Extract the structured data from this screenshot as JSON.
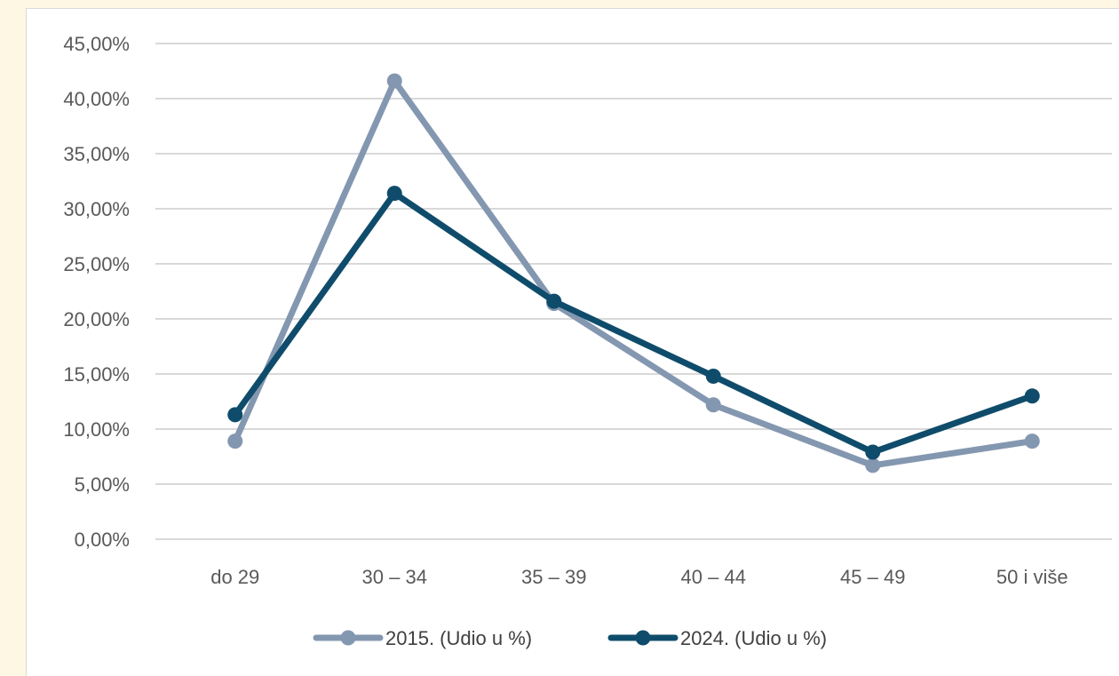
{
  "chart_data": {
    "type": "line",
    "title": "",
    "xlabel": "",
    "ylabel": "",
    "categories": [
      "do 29",
      "30 – 34",
      "35 – 39",
      "40 – 44",
      "45 – 49",
      "50 i više"
    ],
    "ylim": [
      0,
      45
    ],
    "yticks": [
      0,
      5,
      10,
      15,
      20,
      25,
      30,
      35,
      40,
      45
    ],
    "ytick_labels": [
      "0,00%",
      "5,00%",
      "10,00%",
      "15,00%",
      "20,00%",
      "25,00%",
      "30,00%",
      "35,00%",
      "40,00%",
      "45,00%"
    ],
    "grid": true,
    "legend_position": "bottom",
    "series": [
      {
        "name": "2015. (Udio u %)",
        "color": "#8497b0",
        "values": [
          8.9,
          41.6,
          21.4,
          12.2,
          6.7,
          8.9
        ]
      },
      {
        "name": "2024. (Udio u %)",
        "color": "#0f4c6b",
        "values": [
          11.3,
          31.4,
          21.6,
          14.8,
          7.9,
          13.0
        ]
      }
    ]
  }
}
